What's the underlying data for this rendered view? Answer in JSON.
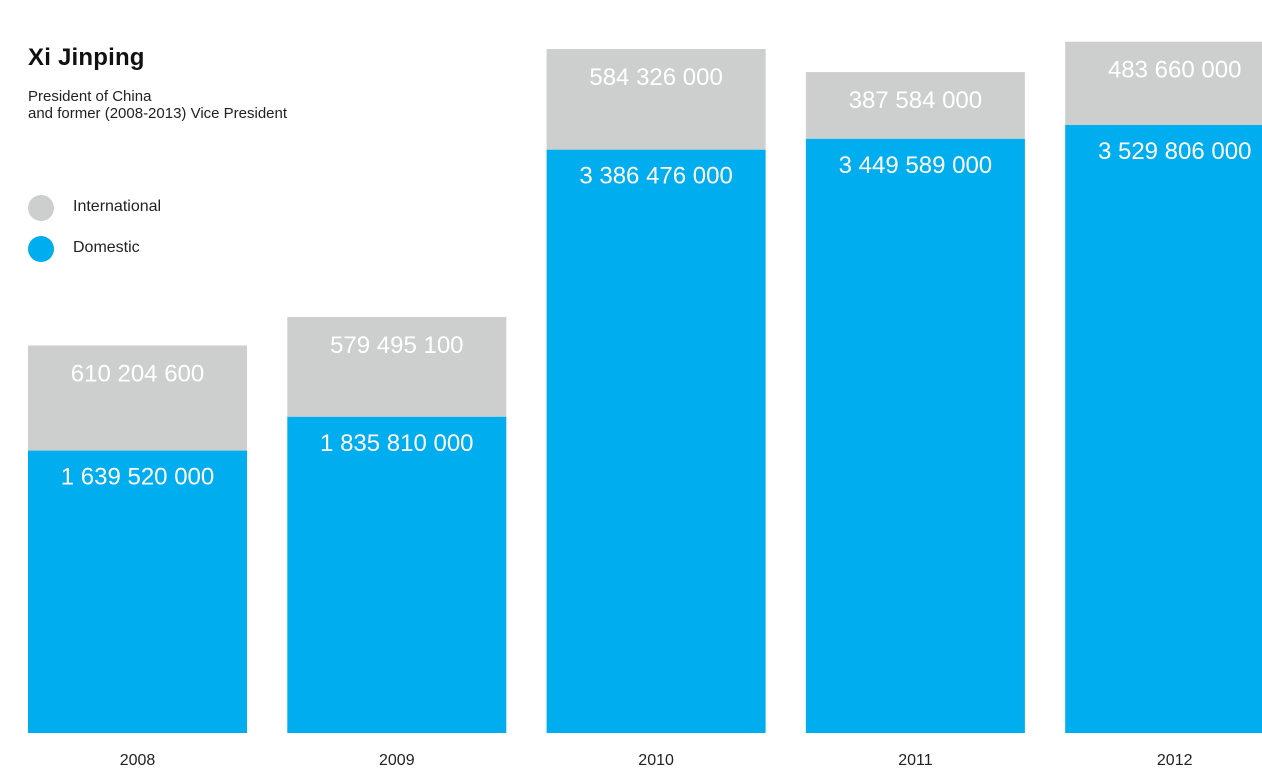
{
  "title": "Xi Jinping",
  "subtitle_lines": [
    "President of China",
    "and former (2008-2013) Vice President"
  ],
  "colors": {
    "domestic": "#00ADEE",
    "international": "#CCCFCE",
    "label_text": "#FFFFFF",
    "axis_text": "#222222"
  },
  "legend": [
    {
      "label": "International",
      "color": "#CCCFCE"
    },
    {
      "label": "Domestic",
      "color": "#00ADEE"
    }
  ],
  "chart_data": {
    "type": "bar",
    "stacked": true,
    "title": "Xi Jinping",
    "categories": [
      "2008",
      "2009",
      "2010",
      "2011",
      "2012"
    ],
    "series": [
      {
        "name": "Domestic",
        "values": [
          1639520000,
          1835810000,
          3386476000,
          3449589000,
          3529806000
        ],
        "labels": [
          "1 639 520 000",
          "1 835 810 000",
          "3 386 476 000",
          "3 449 589 000",
          "3 529 806 000"
        ]
      },
      {
        "name": "International",
        "values": [
          610204600,
          579495100,
          584326000,
          387584000,
          483660000
        ],
        "labels": [
          "610 204 600",
          "579 495 100",
          "584 326 000",
          "387 584 000",
          "483 660 000"
        ]
      }
    ],
    "xlabel": "",
    "ylabel": "",
    "grid": false,
    "legend_position": "top-left"
  }
}
